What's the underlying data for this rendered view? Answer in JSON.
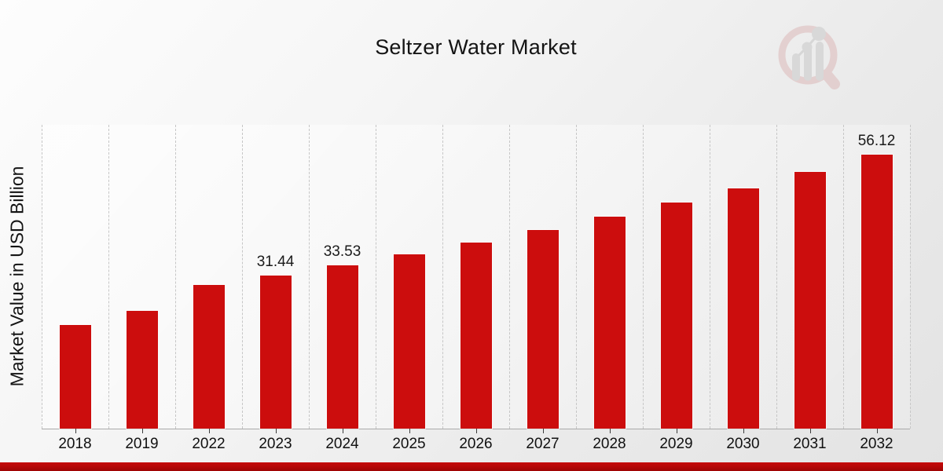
{
  "chart_data": {
    "type": "bar",
    "title": "Seltzer Water Market",
    "ylabel": "Market Value in USD Billion",
    "xlabel": "",
    "categories": [
      "2018",
      "2019",
      "2022",
      "2023",
      "2024",
      "2025",
      "2026",
      "2027",
      "2028",
      "2029",
      "2030",
      "2031",
      "2032"
    ],
    "values": [
      21.3,
      24.2,
      29.5,
      31.44,
      33.53,
      35.8,
      38.1,
      40.7,
      43.4,
      46.3,
      49.3,
      52.6,
      56.12
    ],
    "data_labels": [
      "",
      "",
      "",
      "31.44",
      "33.53",
      "",
      "",
      "",
      "",
      "",
      "",
      "",
      "56.12"
    ],
    "ylim": [
      0,
      62.3
    ],
    "grid": "vertical-dashed",
    "legend": "none",
    "bar_color": "#cc0d0d"
  },
  "colors": {
    "bar_red": "#cc0d0d",
    "footer_bar_red_top": "#c50a0a",
    "footer_bar_red_bottom": "#9e0404",
    "gridline_gray": "#c6c6c6",
    "text_black": "#141414"
  },
  "icons": {
    "logo": "magnifier-bar-chart-logo"
  }
}
